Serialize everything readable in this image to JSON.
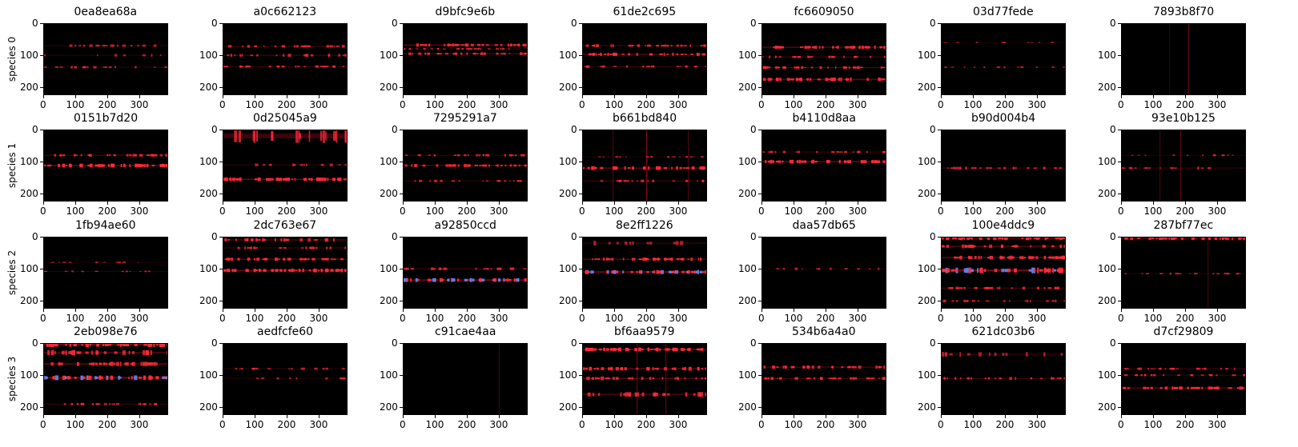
{
  "chart_data": {
    "type": "heatmap",
    "description_rows": 4,
    "description_cols": 7,
    "colormap": [
      "#000000",
      "#d0102a",
      "#ff2a3a",
      "#6a7ae0"
    ],
    "xticks": [
      "0",
      "100",
      "200",
      "300"
    ],
    "xlim": [
      0,
      390
    ],
    "yticks": [
      "0",
      "100",
      "200"
    ],
    "ylim": [
      224,
      0
    ],
    "rows": [
      {
        "label": "species 0",
        "panels": [
          {
            "title": "0ea8ea68a",
            "bands": [
              [
                70,
                0.35,
                6
              ],
              [
                100,
                0.3,
                6
              ],
              [
                137,
                0.45,
                5
              ]
            ],
            "vlines": []
          },
          {
            "title": "a0c662123",
            "bands": [
              [
                72,
                0.55,
                6
              ],
              [
                100,
                0.5,
                7
              ],
              [
                135,
                0.6,
                5
              ]
            ],
            "vlines": []
          },
          {
            "title": "d9bfc9e6b",
            "bands": [
              [
                68,
                0.75,
                7
              ],
              [
                80,
                0.6,
                4
              ],
              [
                95,
                0.7,
                6
              ]
            ],
            "vlines": []
          },
          {
            "title": "61de2c695",
            "bands": [
              [
                70,
                0.6,
                6
              ],
              [
                97,
                0.75,
                7
              ],
              [
                135,
                0.55,
                5
              ]
            ],
            "vlines": []
          },
          {
            "title": "fc6609050",
            "bands": [
              [
                75,
                0.75,
                7
              ],
              [
                105,
                0.55,
                6
              ],
              [
                138,
                0.7,
                6
              ],
              [
                175,
                0.75,
                8
              ]
            ],
            "vlines": []
          },
          {
            "title": "03d77fede",
            "bands": [
              [
                60,
                0.25,
                3
              ],
              [
                137,
                0.3,
                4
              ]
            ],
            "vlines": []
          },
          {
            "title": "7893b8f70",
            "bands": [],
            "vlines": [
              [
                210,
                0.5
              ],
              [
                150,
                0.2
              ]
            ]
          }
        ]
      },
      {
        "label": "species 1",
        "panels": [
          {
            "title": "0151b7d20",
            "bands": [
              [
                80,
                0.6,
                6
              ],
              [
                112,
                0.85,
                8
              ],
              [
                225,
                0.6,
                5
              ]
            ],
            "vlines": []
          },
          {
            "title": "0d25045a9",
            "bands": [
              [
                20,
                0.5,
                30
              ],
              [
                110,
                0.4,
                6
              ],
              [
                155,
                0.85,
                8
              ]
            ],
            "vlines": []
          },
          {
            "title": "7295291a7",
            "bands": [
              [
                80,
                0.55,
                5
              ],
              [
                112,
                0.7,
                7
              ],
              [
                160,
                0.4,
                5
              ]
            ],
            "vlines": []
          },
          {
            "title": "b661bd840",
            "bands": [
              [
                85,
                0.3,
                4
              ],
              [
                120,
                0.75,
                8
              ],
              [
                160,
                0.5,
                6
              ]
            ],
            "vlines": [
              [
                200,
                0.6
              ],
              [
                95,
                0.35
              ],
              [
                330,
                0.35
              ]
            ]
          },
          {
            "title": "b4110d8aa",
            "bands": [
              [
                70,
                0.55,
                5
              ],
              [
                100,
                0.85,
                8
              ]
            ],
            "vlines": []
          },
          {
            "title": "b90d004b4",
            "bands": [
              [
                120,
                0.45,
                6
              ]
            ],
            "vlines": []
          },
          {
            "title": "93e10b125",
            "bands": [
              [
                80,
                0.3,
                4
              ],
              [
                120,
                0.4,
                6
              ]
            ],
            "vlines": [
              [
                185,
                0.45
              ],
              [
                120,
                0.3
              ]
            ]
          }
        ]
      },
      {
        "label": "species 2",
        "panels": [
          {
            "title": "1fb94ae60",
            "bands": [
              [
                80,
                0.3,
                4
              ],
              [
                108,
                0.4,
                4
              ]
            ],
            "vlines": []
          },
          {
            "title": "2dc763e67",
            "bands": [
              [
                10,
                0.6,
                8
              ],
              [
                35,
                0.5,
                6
              ],
              [
                70,
                0.8,
                7
              ],
              [
                105,
                0.85,
                8
              ]
            ],
            "vlines": []
          },
          {
            "title": "a92850ccd",
            "bands": [
              [
                100,
                0.55,
                6
              ],
              [
                135,
                0.95,
                8
              ]
            ],
            "vlines": []
          },
          {
            "title": "8e2ff1226",
            "bands": [
              [
                20,
                0.3,
                10
              ],
              [
                70,
                0.75,
                7
              ],
              [
                110,
                0.95,
                9
              ]
            ],
            "vlines": []
          },
          {
            "title": "daa57db65",
            "bands": [
              [
                100,
                0.35,
                5
              ]
            ],
            "vlines": []
          },
          {
            "title": "100e4ddc9",
            "bands": [
              [
                5,
                0.85,
                8
              ],
              [
                30,
                0.7,
                8
              ],
              [
                65,
                0.8,
                8
              ],
              [
                105,
                0.95,
                12
              ],
              [
                160,
                0.6,
                6
              ],
              [
                200,
                0.4,
                6
              ]
            ],
            "vlines": []
          },
          {
            "title": "287bf77ec",
            "bands": [
              [
                5,
                0.75,
                8
              ],
              [
                115,
                0.4,
                4
              ]
            ],
            "vlines": [
              [
                270,
                0.3
              ]
            ]
          }
        ]
      },
      {
        "label": "species 3",
        "panels": [
          {
            "title": "2eb098e76",
            "bands": [
              [
                5,
                0.9,
                10
              ],
              [
                30,
                0.6,
                12
              ],
              [
                65,
                0.7,
                10
              ],
              [
                108,
                0.95,
                10
              ],
              [
                190,
                0.5,
                5
              ]
            ],
            "vlines": []
          },
          {
            "title": "aedfcfe60",
            "bands": [
              [
                80,
                0.4,
                5
              ],
              [
                110,
                0.3,
                5
              ]
            ],
            "vlines": []
          },
          {
            "title": "c91cae4aa",
            "bands": [],
            "vlines": [
              [
                300,
                0.3
              ]
            ]
          },
          {
            "title": "bf6aa9579",
            "bands": [
              [
                20,
                0.9,
                8
              ],
              [
                80,
                0.75,
                8
              ],
              [
                110,
                0.65,
                8
              ],
              [
                160,
                0.55,
                10
              ]
            ],
            "vlines": [
              [
                170,
                0.45
              ],
              [
                260,
                0.45
              ]
            ]
          },
          {
            "title": "534b6a4a0",
            "bands": [
              [
                75,
                0.65,
                7
              ],
              [
                110,
                0.7,
                6
              ]
            ],
            "vlines": []
          },
          {
            "title": "621dc03b6",
            "bands": [
              [
                35,
                0.3,
                10
              ],
              [
                110,
                0.6,
                6
              ]
            ],
            "vlines": []
          },
          {
            "title": "d7cf29809",
            "bands": [
              [
                80,
                0.6,
                5
              ],
              [
                100,
                0.55,
                5
              ],
              [
                140,
                0.8,
                7
              ]
            ],
            "vlines": []
          }
        ]
      }
    ]
  }
}
